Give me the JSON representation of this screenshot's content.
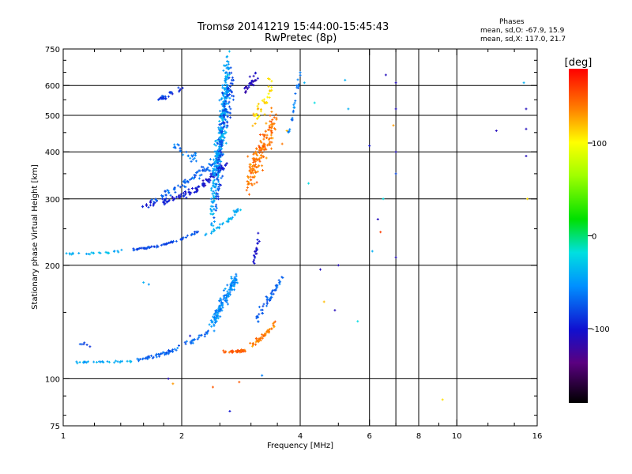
{
  "title": "Tromsø 20141219 15:44:00-15:45:43",
  "subtitle": "RwPretec (8p)",
  "stats": {
    "heading": "Phases",
    "line1": "mean, sd,O: -67.9, 15.9",
    "line2": "mean, sd,X: 117.0, 21.7"
  },
  "chart_data": {
    "type": "scatter",
    "xlabel": "Frequency [MHz]",
    "ylabel": "Stationary phase Virtual Height [km]",
    "x_scale": "log",
    "y_scale": "log",
    "xlim": [
      1,
      16
    ],
    "ylim": [
      75,
      750
    ],
    "x_ticks": [
      1,
      2,
      4,
      6,
      8,
      10,
      16
    ],
    "x_tick_labels": [
      "1",
      "2",
      "4",
      "6",
      "8",
      "10",
      "16"
    ],
    "y_ticks": [
      75,
      100,
      200,
      300,
      400,
      500,
      600,
      750
    ],
    "y_tick_labels": [
      "75",
      "100",
      "200",
      "300",
      "400",
      "500",
      "600",
      "750"
    ],
    "x_gridlines": [
      2,
      4,
      6,
      7,
      8,
      10
    ],
    "y_gridlines": [
      100,
      200,
      300,
      400,
      500,
      600
    ],
    "grid": true,
    "colorbar": {
      "label": "[deg]",
      "range": [
        -180,
        180
      ],
      "ticks": [
        100,
        0,
        -100
      ],
      "tick_labels": [
        "100",
        "0",
        "-100"
      ]
    },
    "series": [
      {
        "segments": [
          {
            "f": [
              1.6,
              1.8,
              2.0,
              2.2,
              2.4,
              2.6
            ],
            "h": [
              290,
              295,
              305,
              320,
              345,
              370
            ],
            "phase": -100,
            "jitter": [
              0.02,
              0.03
            ],
            "n": 120
          },
          {
            "f": [
              1.7,
              1.9,
              2.1,
              2.3,
              2.5
            ],
            "h": [
              300,
              315,
              335,
              360,
              390
            ],
            "phase": -70,
            "jitter": [
              0.02,
              0.04
            ],
            "n": 80
          },
          {
            "f": [
              2.38,
              2.52,
              2.62
            ],
            "h": [
              280,
              450,
              640
            ],
            "phase": -45,
            "jitter": [
              0.02,
              0.25
            ],
            "n": 320
          },
          {
            "f": [
              2.45,
              2.55,
              2.7
            ],
            "h": [
              300,
              500,
              620
            ],
            "phase": -80,
            "jitter": [
              0.02,
              0.2
            ],
            "n": 120
          },
          {
            "f": [
              1.75,
              1.85,
              2.0
            ],
            "h": [
              550,
              565,
              590
            ],
            "phase": -85,
            "jitter": [
              0.02,
              0.02
            ],
            "n": 30
          },
          {
            "f": [
              1.9,
              2.05,
              2.2
            ],
            "h": [
              420,
              400,
              380
            ],
            "phase": -60,
            "jitter": [
              0.03,
              0.05
            ],
            "n": 25
          },
          {
            "f": [
              2.95,
              3.1,
              3.3,
              3.45
            ],
            "h": [
              340,
              380,
              430,
              480
            ],
            "phase": 140,
            "jitter": [
              0.03,
              0.15
            ],
            "n": 160
          },
          {
            "f": [
              3.0,
              3.2,
              3.4
            ],
            "h": [
              470,
              530,
              610
            ],
            "phase": 110,
            "jitter": [
              0.03,
              0.08
            ],
            "n": 40
          },
          {
            "f": [
              2.9,
              3.0,
              3.1
            ],
            "h": [
              580,
              610,
              640
            ],
            "phase": -110,
            "jitter": [
              0.02,
              0.04
            ],
            "n": 30
          },
          {
            "f": [
              3.75,
              3.85,
              3.95,
              4.0
            ],
            "h": [
              450,
              520,
              600,
              650
            ],
            "phase": -60,
            "jitter": [
              0.01,
              0.04
            ],
            "n": 25
          },
          {
            "f": [
              1.0,
              1.2,
              1.4
            ],
            "h": [
              215,
              215,
              218
            ],
            "phase": -40,
            "jitter": [
              0.02,
              0.01
            ],
            "n": 25
          },
          {
            "f": [
              1.5,
              1.75,
              2.0,
              2.2
            ],
            "h": [
              220,
              225,
              235,
              245
            ],
            "phase": -80,
            "jitter": [
              0.02,
              0.01
            ],
            "n": 60
          },
          {
            "f": [
              2.3,
              2.6,
              2.8
            ],
            "h": [
              240,
              260,
              285
            ],
            "phase": -40,
            "jitter": [
              0.02,
              0.02
            ],
            "n": 35
          },
          {
            "f": [
              3.05,
              3.15
            ],
            "h": [
              205,
              240
            ],
            "phase": -105,
            "jitter": [
              0.01,
              0.04
            ],
            "n": 20
          },
          {
            "f": [
              1.0,
              1.2,
              1.5
            ],
            "h": [
              110,
              111,
              111
            ],
            "phase": -40,
            "jitter": [
              0.02,
              0.01
            ],
            "n": 30
          },
          {
            "f": [
              1.55,
              1.8,
              2.1,
              2.4
            ],
            "h": [
              112,
              116,
              125,
              135
            ],
            "phase": -70,
            "jitter": [
              0.02,
              0.02
            ],
            "n": 70
          },
          {
            "f": [
              2.4,
              2.55,
              2.75
            ],
            "h": [
              140,
              160,
              185
            ],
            "phase": -55,
            "jitter": [
              0.03,
              0.05
            ],
            "n": 140
          },
          {
            "f": [
              2.55,
              2.75,
              2.9
            ],
            "h": [
              118,
              118,
              119
            ],
            "phase": 150,
            "jitter": [
              0.01,
              0.01
            ],
            "n": 40
          },
          {
            "f": [
              2.95,
              3.2,
              3.45
            ],
            "h": [
              122,
              128,
              140
            ],
            "phase": 140,
            "jitter": [
              0.02,
              0.02
            ],
            "n": 50
          },
          {
            "f": [
              3.05,
              3.35,
              3.6
            ],
            "h": [
              140,
              165,
              185
            ],
            "phase": -70,
            "jitter": [
              0.02,
              0.04
            ],
            "n": 50
          },
          {
            "f": [
              1.1,
              1.15
            ],
            "h": [
              125,
              122
            ],
            "phase": -80,
            "jitter": [
              0.03,
              0.02
            ],
            "n": 6
          }
        ],
        "points": [
          [
            1.6,
            180,
            -40
          ],
          [
            1.65,
            178,
            -50
          ],
          [
            1.85,
            100,
            -110
          ],
          [
            1.9,
            97,
            130
          ],
          [
            2.1,
            130,
            -100
          ],
          [
            2.4,
            95,
            150
          ],
          [
            2.65,
            82,
            -100
          ],
          [
            2.8,
            98,
            150
          ],
          [
            3.2,
            102,
            -60
          ],
          [
            4.5,
            195,
            -110
          ],
          [
            4.6,
            160,
            120
          ],
          [
            4.9,
            152,
            -110
          ],
          [
            5.6,
            142,
            -20
          ],
          [
            6.0,
            415,
            -100
          ],
          [
            6.3,
            265,
            -110
          ],
          [
            6.1,
            218,
            -40
          ],
          [
            6.5,
            300,
            -20
          ],
          [
            6.4,
            245,
            160
          ],
          [
            7.0,
            210,
            -110
          ],
          [
            7.0,
            610,
            -110
          ],
          [
            7.0,
            520,
            -110
          ],
          [
            7.0,
            400,
            -110
          ],
          [
            6.9,
            470,
            130
          ],
          [
            7.0,
            350,
            -80
          ],
          [
            9.2,
            88,
            110
          ],
          [
            12.6,
            455,
            -110
          ],
          [
            14.8,
            610,
            -40
          ],
          [
            15.0,
            520,
            -110
          ],
          [
            15.0,
            460,
            -110
          ],
          [
            15.0,
            390,
            -110
          ],
          [
            15.1,
            300,
            110
          ],
          [
            4.0,
            650,
            -60
          ],
          [
            4.1,
            610,
            -40
          ],
          [
            4.35,
            540,
            -20
          ],
          [
            5.2,
            620,
            -40
          ],
          [
            5.3,
            520,
            -40
          ],
          [
            4.2,
            330,
            -20
          ],
          [
            3.6,
            420,
            140
          ],
          [
            3.7,
            455,
            120
          ],
          [
            6.6,
            640,
            -110
          ],
          [
            5.0,
            200,
            -110
          ]
        ]
      }
    ]
  }
}
